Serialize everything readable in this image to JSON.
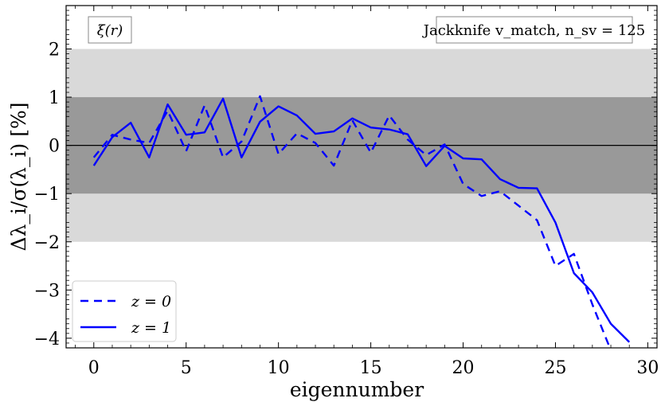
{
  "chart_data": {
    "type": "line",
    "xlabel": "eigennumber",
    "ylabel": "Δλ_i/σ(λ_i)  [%]",
    "xlim": [
      -1.5,
      30.5
    ],
    "ylim": [
      -4.2,
      2.9
    ],
    "xticks": [
      0,
      5,
      10,
      15,
      20,
      25,
      30
    ],
    "yticks": [
      2,
      1,
      0,
      -1,
      -2,
      -3,
      -4
    ],
    "xtick_labels": [
      "0",
      "5",
      "10",
      "15",
      "20",
      "25",
      "30"
    ],
    "ytick_labels": [
      "2",
      "1",
      "0",
      "−1",
      "−2",
      "−3",
      "−4"
    ],
    "bands": [
      {
        "range": [
          -2,
          2
        ],
        "color": "#d9d9d9"
      },
      {
        "range": [
          -1,
          1
        ],
        "color": "#999999"
      }
    ],
    "zero_line": 0,
    "corner_label": "ξ(r)",
    "annotation": "Jackknife v_match, n_sv = 125",
    "legend_position": "bottom-left",
    "series": [
      {
        "name": "z = 0",
        "style": "dashed",
        "color": "#0000ff",
        "x": [
          0,
          1,
          2,
          3,
          4,
          5,
          6,
          7,
          8,
          9,
          10,
          11,
          12,
          13,
          14,
          15,
          16,
          17,
          18,
          19,
          20,
          21,
          22,
          23,
          24,
          25,
          26,
          27,
          28
        ],
        "values": [
          -0.25,
          0.22,
          0.12,
          0.05,
          0.72,
          -0.12,
          0.83,
          -0.25,
          0.08,
          1.02,
          -0.18,
          0.25,
          0.05,
          -0.42,
          0.52,
          -0.15,
          0.62,
          0.12,
          -0.2,
          0.02,
          -0.8,
          -1.05,
          -0.95,
          -1.25,
          -1.55,
          -2.5,
          -2.25,
          -3.3,
          -4.25
        ]
      },
      {
        "name": "z = 1",
        "style": "solid",
        "color": "#0000ff",
        "x": [
          0,
          1,
          2,
          3,
          4,
          5,
          6,
          7,
          8,
          9,
          10,
          11,
          12,
          13,
          14,
          15,
          16,
          17,
          18,
          19,
          20,
          21,
          22,
          23,
          24,
          25,
          26,
          27,
          28,
          29
        ],
        "values": [
          -0.42,
          0.17,
          0.47,
          -0.25,
          0.85,
          0.22,
          0.27,
          0.97,
          -0.25,
          0.49,
          0.81,
          0.62,
          0.24,
          0.29,
          0.56,
          0.37,
          0.33,
          0.23,
          -0.43,
          -0.01,
          -0.27,
          -0.29,
          -0.7,
          -0.88,
          -0.89,
          -1.6,
          -2.65,
          -3.05,
          -3.7,
          -4.08
        ]
      }
    ]
  }
}
